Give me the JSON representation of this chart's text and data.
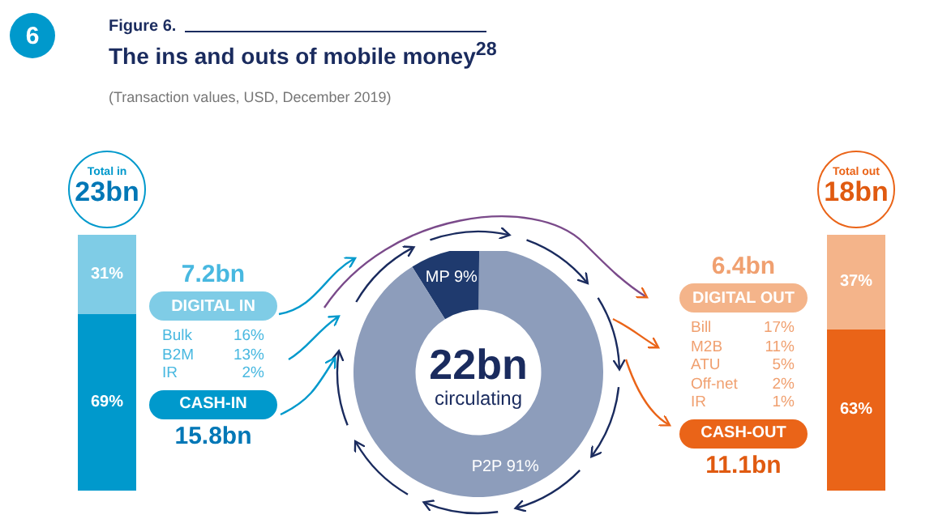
{
  "chart_data": [
    {
      "type": "other",
      "title": "The ins and outs of mobile money$^{28}$",
      "subtitle": "(Transaction values, USD, December 2019)",
      "annotations": [
        "6",
        "Figure 6."
      ]
    },
    {
      "type": "bar",
      "stacked": true,
      "title": "Total in",
      "subtitle": "23bn",
      "categories": [
        null
      ],
      "tick_labels": false,
      "series": [
        {
          "color": "#0099cc",
          "values": [
            69
          ],
          "value_labels": [
            "69%"
          ]
        },
        {
          "color": "#7fcce6",
          "values": [
            31
          ],
          "value_labels": [
            "31%"
          ]
        }
      ],
      "annotations": [
        "7.2bn",
        "DIGITAL IN",
        "Bulk",
        "16%",
        "B2M",
        "13%",
        "IR",
        "2%",
        "CASH-IN",
        "15.8bn"
      ]
    },
    {
      "type": "donut",
      "categories": [
        "MP",
        "P2P"
      ],
      "values": [
        9,
        91
      ],
      "colors": [
        "#1f3a6e",
        "#8d9dbb"
      ],
      "value_labels": [
        "9%",
        "91%"
      ],
      "annotations": [
        "22bn",
        "circulating"
      ]
    },
    {
      "type": "bar",
      "stacked": true,
      "title": "Total out",
      "subtitle": "18bn",
      "categories": [
        null
      ],
      "tick_labels": false,
      "series": [
        {
          "color": "#ea6418",
          "values": [
            63
          ],
          "value_labels": [
            "63%"
          ]
        },
        {
          "color": "#f4b48a",
          "values": [
            37
          ],
          "value_labels": [
            "37%"
          ]
        }
      ],
      "annotations": [
        "6.4bn",
        "DIGITAL OUT",
        "Bill",
        "17%",
        "M2B",
        "11%",
        "ATU",
        "5%",
        "Off-net",
        "2%",
        "IR",
        "1%",
        "CASH-OUT",
        "11.1bn"
      ]
    }
  ]
}
